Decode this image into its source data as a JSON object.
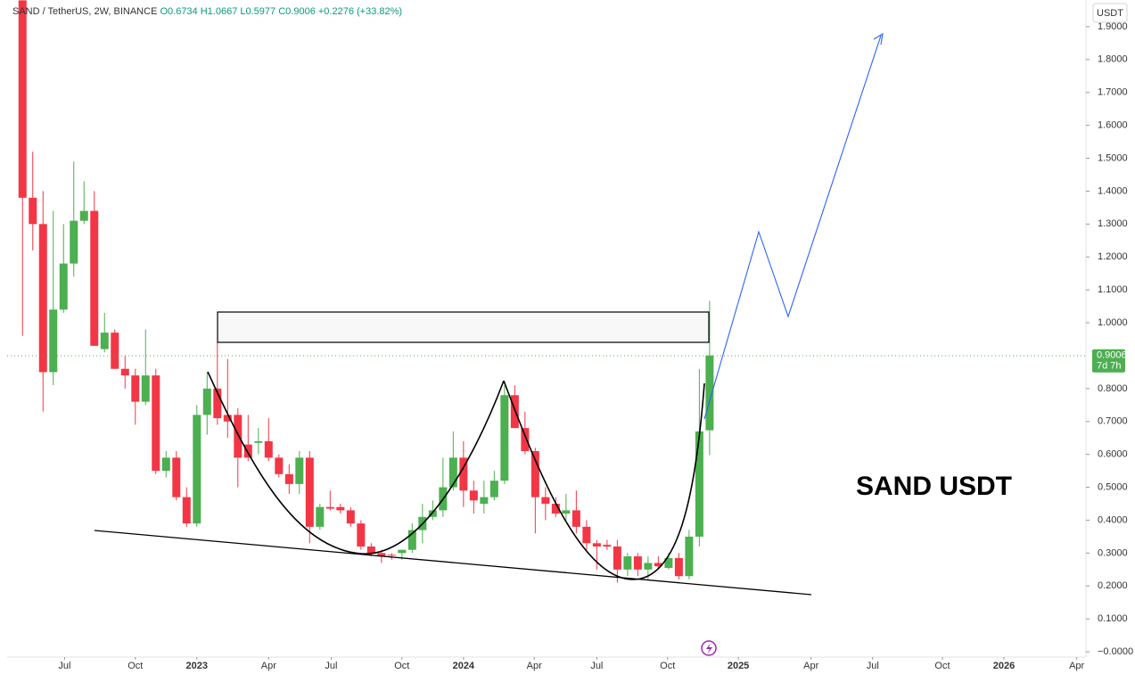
{
  "chart_data": {
    "type": "candlestick",
    "symbol": "SAND / TetherUS, 2W, BINANCE",
    "ohlc_labels": [
      "O0.6734",
      "H1.0667",
      "L0.5977",
      "C0.9006"
    ],
    "change": "+0.2276 (+33.82%)",
    "currency": "USDT",
    "countdown": "7d 7h",
    "annotation": "SAND USDT",
    "up_color": "#4caf50",
    "down_color": "#f23645",
    "open": [
      1.98,
      1.38,
      1.3,
      0.85,
      1.04,
      1.18,
      1.31,
      1.34,
      0.92,
      0.97,
      0.86,
      0.84,
      0.76,
      0.84,
      0.55,
      0.59,
      0.47,
      0.39,
      0.72,
      0.8,
      0.72,
      0.72,
      0.63,
      0.635,
      0.64,
      0.59,
      0.54,
      0.51,
      0.59,
      0.38,
      0.44,
      0.44,
      0.43,
      0.39,
      0.32,
      0.3,
      0.295,
      0.3,
      0.31,
      0.37,
      0.41,
      0.43,
      0.5,
      0.59,
      0.49,
      0.45,
      0.47,
      0.52,
      0.78,
      0.68,
      0.61,
      0.47,
      0.45,
      0.42,
      0.43,
      0.38,
      0.33,
      0.325,
      0.32,
      0.25,
      0.29,
      0.25,
      0.27,
      0.255,
      0.285,
      0.23,
      0.35,
      0.6734
    ],
    "high": [
      1.98,
      1.52,
      1.4,
      1.34,
      1.3,
      1.49,
      1.43,
      1.4,
      1.03,
      0.98,
      0.9,
      0.86,
      0.98,
      0.86,
      0.61,
      0.61,
      0.5,
      0.75,
      0.85,
      0.94,
      0.89,
      0.74,
      0.72,
      0.68,
      0.71,
      0.6,
      0.57,
      0.61,
      0.61,
      0.45,
      0.49,
      0.45,
      0.44,
      0.4,
      0.33,
      0.31,
      0.3,
      0.31,
      0.39,
      0.45,
      0.46,
      0.59,
      0.67,
      0.64,
      0.52,
      0.52,
      0.55,
      0.81,
      0.81,
      0.73,
      0.62,
      0.5,
      0.47,
      0.48,
      0.49,
      0.4,
      0.34,
      0.34,
      0.34,
      0.3,
      0.3,
      0.29,
      0.29,
      0.3,
      0.3,
      0.37,
      0.86,
      1.0667
    ],
    "low": [
      0.96,
      1.22,
      0.73,
      0.81,
      1.03,
      1.14,
      1.3,
      0.93,
      0.91,
      0.86,
      0.8,
      0.69,
      0.75,
      0.54,
      0.53,
      0.46,
      0.38,
      0.38,
      0.66,
      0.69,
      0.65,
      0.5,
      0.58,
      0.6,
      0.58,
      0.53,
      0.48,
      0.48,
      0.33,
      0.37,
      0.43,
      0.42,
      0.38,
      0.31,
      0.29,
      0.27,
      0.28,
      0.28,
      0.3,
      0.33,
      0.4,
      0.41,
      0.49,
      0.44,
      0.42,
      0.42,
      0.46,
      0.51,
      0.68,
      0.6,
      0.36,
      0.4,
      0.41,
      0.4,
      0.36,
      0.31,
      0.25,
      0.31,
      0.21,
      0.23,
      0.23,
      0.22,
      0.25,
      0.25,
      0.22,
      0.22,
      0.32,
      0.5977
    ],
    "close": [
      1.38,
      1.3,
      0.85,
      1.04,
      1.18,
      1.31,
      1.34,
      0.93,
      0.97,
      0.86,
      0.84,
      0.76,
      0.84,
      0.55,
      0.59,
      0.47,
      0.39,
      0.72,
      0.8,
      0.71,
      0.7,
      0.59,
      0.59,
      0.64,
      0.59,
      0.54,
      0.51,
      0.59,
      0.38,
      0.44,
      0.435,
      0.43,
      0.39,
      0.32,
      0.3,
      0.29,
      0.293,
      0.31,
      0.37,
      0.41,
      0.43,
      0.5,
      0.59,
      0.49,
      0.46,
      0.47,
      0.52,
      0.78,
      0.68,
      0.61,
      0.47,
      0.45,
      0.42,
      0.43,
      0.38,
      0.33,
      0.32,
      0.32,
      0.25,
      0.29,
      0.25,
      0.27,
      0.26,
      0.285,
      0.23,
      0.35,
      0.67,
      0.9006
    ],
    "ylim": [
      -0.016,
      1.981
    ],
    "yticks": [
      {
        "value": 1.9,
        "label": "1.9000"
      },
      {
        "value": 1.8,
        "label": "1.8000"
      },
      {
        "value": 1.7,
        "label": "1.7000"
      },
      {
        "value": 1.6,
        "label": "1.6000"
      },
      {
        "value": 1.5,
        "label": "1.5000"
      },
      {
        "value": 1.4,
        "label": "1.4000"
      },
      {
        "value": 1.3,
        "label": "1.3000"
      },
      {
        "value": 1.2,
        "label": "1.2000"
      },
      {
        "value": 1.1,
        "label": "1.1000"
      },
      {
        "value": 1.0,
        "label": "1.0000"
      },
      {
        "value": 0.8,
        "label": "0.8000"
      },
      {
        "value": 0.7,
        "label": "0.7000"
      },
      {
        "value": 0.6,
        "label": "0.6000"
      },
      {
        "value": 0.5,
        "label": "0.5000"
      },
      {
        "value": 0.4,
        "label": "0.4000"
      },
      {
        "value": 0.3,
        "label": "0.3000"
      },
      {
        "value": 0.2,
        "label": "0.2000"
      },
      {
        "value": 0.1,
        "label": "0.1000"
      },
      {
        "value": 0,
        "label": "−0.0000"
      }
    ],
    "xlim": [
      -1.5,
      103.7
    ],
    "xticks": [
      {
        "value": 4.1,
        "label": "Jul"
      },
      {
        "value": 11.0,
        "label": "Oct"
      },
      {
        "value": 17.0,
        "label": "2023"
      },
      {
        "value": 24.0,
        "label": "Apr"
      },
      {
        "value": 30.1,
        "label": "Jul"
      },
      {
        "value": 37.0,
        "label": "Oct"
      },
      {
        "value": 43.0,
        "label": "2024"
      },
      {
        "value": 49.9,
        "label": "Apr"
      },
      {
        "value": 56.0,
        "label": "Jul"
      },
      {
        "value": 62.9,
        "label": "Oct"
      },
      {
        "value": 69.8,
        "label": "2025"
      },
      {
        "value": 76.9,
        "label": "Apr"
      },
      {
        "value": 82.9,
        "label": "Jul"
      },
      {
        "value": 89.7,
        "label": "Oct"
      },
      {
        "value": 95.7,
        "label": "2026"
      },
      {
        "value": 102.8,
        "label": "Apr"
      }
    ]
  }
}
